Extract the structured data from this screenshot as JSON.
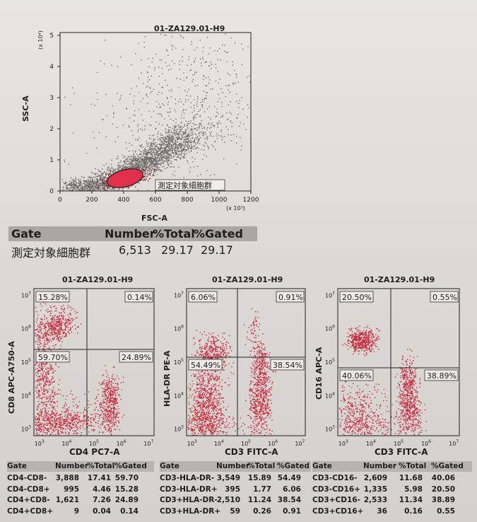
{
  "main_plot": {
    "title": "01-ZA129.01-H9",
    "xlabel": "FSC-A",
    "ylabel": "SSC-A",
    "x_multiplier": "(x 10³)",
    "y_multiplier": "(x 10⁴)",
    "x_ticks": [
      "0",
      "200",
      "400",
      "600",
      "800",
      "1000",
      "1200"
    ],
    "y_ticks": [
      "0",
      "1",
      "2",
      "3",
      "4",
      "5"
    ],
    "gate_label": "測定対象細胞群"
  },
  "gate_table": {
    "headers": [
      "Gate",
      "Number",
      "%Total",
      "%Gated"
    ],
    "row": [
      "測定対象細胞群",
      "6,513",
      "29.17",
      "29.17"
    ]
  },
  "quad_plots": [
    {
      "title": "01-ZA129.01-H9",
      "xlabel": "CD4 PC7-A",
      "ylabel": "CD8 APC-A750-A",
      "quadrants": [
        "15.28%",
        "0.14%",
        "59.70%",
        "24.89%"
      ]
    },
    {
      "title": "01-ZA129.01-H9",
      "xlabel": "CD3 FITC-A",
      "ylabel": "HLA-DR PE-A",
      "quadrants": [
        "6.06%",
        "0.91%",
        "54.49%",
        "38.54%"
      ]
    },
    {
      "title": "01-ZA129.01-H9",
      "xlabel": "CD3 FITC-A",
      "ylabel": "CD16 APC-A",
      "quadrants": [
        "20.50%",
        "0.55%",
        "40.06%",
        "38.89%"
      ]
    }
  ],
  "log_ticks": {
    "exponents": [
      "3",
      "4",
      "5",
      "6",
      "7"
    ],
    "base": "10"
  },
  "quad_tables": [
    {
      "headers": [
        "Gate",
        "Number",
        "%Total",
        "%Gated"
      ],
      "rows": [
        [
          "CD4-CD8-",
          "3,888",
          "17.41",
          "59.70"
        ],
        [
          "CD4-CD8+",
          "995",
          "4.46",
          "15.28"
        ],
        [
          "CD4+CD8-",
          "1,621",
          "7.26",
          "24.89"
        ],
        [
          "CD4+CD8+",
          "9",
          "0.04",
          "0.14"
        ]
      ]
    },
    {
      "headers": [
        "Gate",
        "Number",
        "%Total",
        "%Gated"
      ],
      "rows": [
        [
          "CD3-HLA-DR-",
          "3,549",
          "15.89",
          "54.49"
        ],
        [
          "CD3-HLA-DR+",
          "395",
          "1.77",
          "6.06"
        ],
        [
          "CD3+HLA-DR-",
          "2,510",
          "11.24",
          "38.54"
        ],
        [
          "CD3+HLA-DR+",
          "59",
          "0.26",
          "0.91"
        ]
      ]
    },
    {
      "headers": [
        "Gate",
        "Number",
        "%Total",
        "%Gated"
      ],
      "rows": [
        [
          "CD3-CD16-",
          "2,609",
          "11.68",
          "40.06"
        ],
        [
          "CD3-CD16+",
          "1,335",
          "5.98",
          "20.50"
        ],
        [
          "CD3+CD16-",
          "2,533",
          "11.34",
          "38.89"
        ],
        [
          "CD3+CD16+",
          "36",
          "0.16",
          "0.55"
        ]
      ]
    }
  ],
  "colors": {
    "gray_dots": "#6f6a66",
    "red_dots": "#c8283c",
    "gate_fill": "#e0304a"
  }
}
